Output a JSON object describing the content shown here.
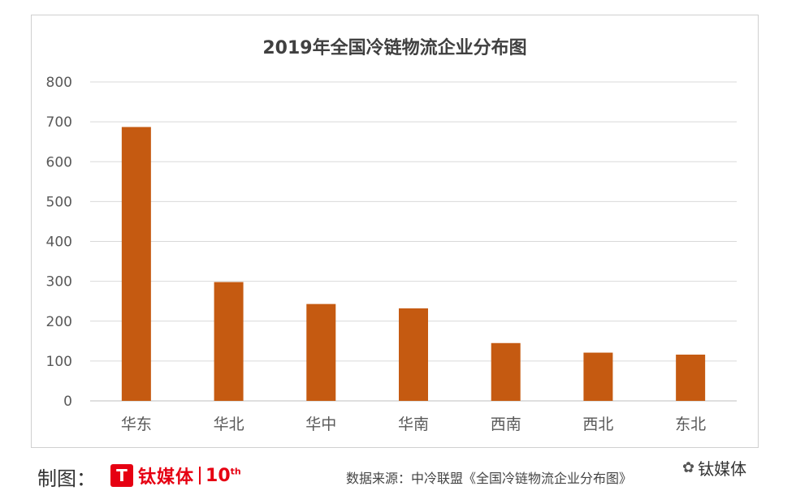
{
  "chart_data": {
    "type": "bar",
    "title": "2019年全国冷链物流企业分布图",
    "categories": [
      "华东",
      "华北",
      "华中",
      "华南",
      "西南",
      "西北",
      "东北"
    ],
    "values": [
      687,
      298,
      243,
      232,
      145,
      121,
      116
    ],
    "ylim": [
      0,
      800
    ],
    "yticks": [
      "0",
      "100",
      "200",
      "300",
      "400",
      "500",
      "600",
      "700",
      "800"
    ],
    "xlabel": "",
    "ylabel": "",
    "grid": true,
    "bar_color": "#c55a11",
    "grid_color": "#d9d9d9"
  },
  "footer": {
    "credit_label": "制图：",
    "logo_text": "钛媒体",
    "logo_anniv": "10",
    "logo_anniv_sup": "th",
    "source": "数据来源：中冷联盟《全国冷链物流企业分布图》",
    "wechat_name": "钛媒体"
  }
}
